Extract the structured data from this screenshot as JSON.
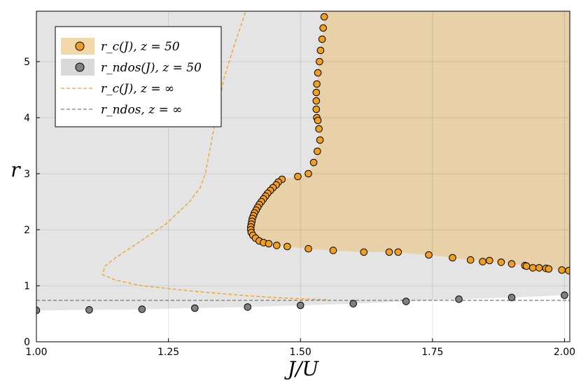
{
  "chart_data": {
    "type": "scatter",
    "xlabel": "J/U",
    "ylabel": "r",
    "xlim": [
      1.0,
      2.01
    ],
    "ylim": [
      0,
      5.9
    ],
    "xticks": [
      "1.00",
      "1.25",
      "1.50",
      "1.75",
      "2.00"
    ],
    "xtick_values": [
      1.0,
      1.25,
      1.5,
      1.75,
      2.0
    ],
    "yticks": [
      "0",
      "1",
      "2",
      "3",
      "4",
      "5"
    ],
    "ytick_values": [
      0,
      1,
      2,
      3,
      4,
      5
    ],
    "grid": true,
    "legend_position": "top-left",
    "legend": [
      {
        "label": "r_c(J), z = 50",
        "marker": "circle",
        "color": "#f0a01e",
        "fill": "#f2d9a9"
      },
      {
        "label": "r_ndos(J), z = 50",
        "marker": "circle",
        "color": "#808080",
        "fill": "#d9d9d9"
      },
      {
        "label": "r_c(J), z = ∞",
        "line": "dashed",
        "color": "#f0a01e"
      },
      {
        "label": "r_ndos, z = ∞",
        "line": "dashed",
        "color": "#808080"
      }
    ],
    "series": [
      {
        "kind": "points",
        "color": "#f0a01e",
        "x": [
          1.548,
          1.545,
          1.543,
          1.541,
          1.538,
          1.536,
          1.533,
          1.531,
          1.53,
          1.53,
          1.53,
          1.531,
          1.533,
          1.535,
          1.537,
          1.532,
          1.525,
          1.515,
          1.495,
          1.465,
          1.458,
          1.454,
          1.448,
          1.443,
          1.438,
          1.434,
          1.43,
          1.426,
          1.422,
          1.419,
          1.416,
          1.413,
          1.411,
          1.409,
          1.408,
          1.407,
          1.406,
          1.406,
          1.407,
          1.41,
          1.415,
          1.422,
          1.43,
          1.44,
          1.455,
          1.475,
          1.515,
          1.562,
          1.62,
          1.668,
          1.685,
          1.743,
          1.788,
          1.822,
          1.858,
          1.845,
          1.88,
          1.9,
          1.925,
          1.928,
          1.94,
          1.952,
          1.965,
          1.97,
          1.995,
          2.008
        ],
        "y": [
          5.97,
          5.8,
          5.6,
          5.4,
          5.2,
          5.0,
          4.8,
          4.6,
          4.45,
          4.3,
          4.15,
          4.0,
          3.95,
          3.8,
          3.6,
          3.4,
          3.2,
          3.0,
          2.95,
          2.9,
          2.85,
          2.8,
          2.75,
          2.7,
          2.65,
          2.6,
          2.55,
          2.5,
          2.45,
          2.4,
          2.35,
          2.3,
          2.25,
          2.2,
          2.15,
          2.1,
          2.05,
          2.0,
          1.95,
          1.9,
          1.85,
          1.8,
          1.77,
          1.75,
          1.72,
          1.7,
          1.66,
          1.63,
          1.6,
          1.6,
          1.6,
          1.55,
          1.5,
          1.46,
          1.45,
          1.43,
          1.42,
          1.39,
          1.36,
          1.35,
          1.32,
          1.32,
          1.31,
          1.3,
          1.28,
          1.27
        ]
      },
      {
        "kind": "points",
        "color": "#808080",
        "x": [
          1.0,
          1.1,
          1.2,
          1.3,
          1.4,
          1.5,
          1.6,
          1.7,
          1.8,
          1.9,
          2.0
        ],
        "y": [
          0.56,
          0.57,
          0.58,
          0.6,
          0.62,
          0.65,
          0.68,
          0.72,
          0.76,
          0.79,
          0.83
        ]
      },
      {
        "kind": "dashed",
        "color": "#f0a01e",
        "x": [
          1.55,
          1.47,
          1.4,
          1.3,
          1.2,
          1.15,
          1.125,
          1.13,
          1.15,
          1.19,
          1.245,
          1.29,
          1.31,
          1.32,
          1.33,
          1.34,
          1.355,
          1.375,
          1.4
        ],
        "y": [
          0.75,
          0.78,
          0.82,
          0.9,
          1.0,
          1.1,
          1.2,
          1.35,
          1.5,
          1.75,
          2.1,
          2.5,
          2.75,
          3.0,
          3.5,
          4.0,
          4.7,
          5.3,
          6.0
        ]
      },
      {
        "kind": "dashed",
        "color": "#808080",
        "x": [
          1.0,
          2.01
        ],
        "y": [
          0.74,
          0.74
        ]
      }
    ],
    "regions": [
      {
        "name": "gray-region",
        "color": "#e4e4e4",
        "upper_y": 5.9
      },
      {
        "name": "orange-region",
        "color": "#e8d1a7"
      }
    ]
  }
}
